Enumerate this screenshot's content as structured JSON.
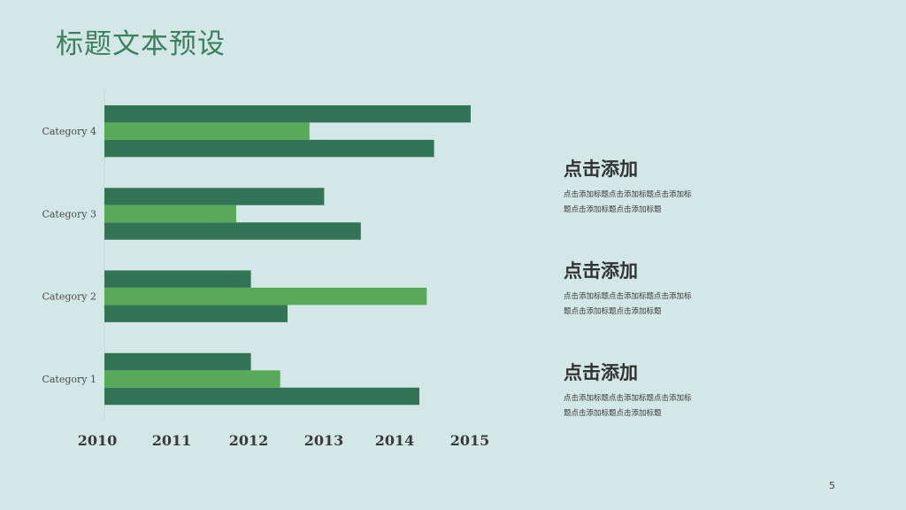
{
  "slide": {
    "title": "标题文本预设",
    "page_number": "5"
  },
  "text_blocks": [
    {
      "heading": "点击添加",
      "body": "点击添加标题点击添加标题点击添加标题点击添加标题点击添加标题"
    },
    {
      "heading": "点击添加",
      "body": "点击添加标题点击添加标题点击添加标题点击添加标题点击添加标题"
    },
    {
      "heading": "点击添加",
      "body": "点击添加标题点击添加标题点击添加标题点击添加标题点击添加标题"
    }
  ],
  "chart_data": {
    "type": "bar",
    "orientation": "horizontal",
    "categories": [
      "Category 1",
      "Category 2",
      "Category 3",
      "Category 4"
    ],
    "x_ticks": [
      "2010",
      "2011",
      "2012",
      "2013",
      "2014",
      "2015"
    ],
    "xlim": [
      2010,
      2015
    ],
    "grid": false,
    "legend": "none",
    "series": [
      {
        "values": [
          2014.3,
          2012.5,
          2013.5,
          2014.5
        ],
        "color": "#337457"
      },
      {
        "values": [
          2012.4,
          2014.4,
          2011.8,
          2012.8
        ],
        "color": "#58aa5a"
      },
      {
        "values": [
          2012.0,
          2012.0,
          2013.0,
          2015.0
        ],
        "color": "#337457"
      }
    ]
  }
}
